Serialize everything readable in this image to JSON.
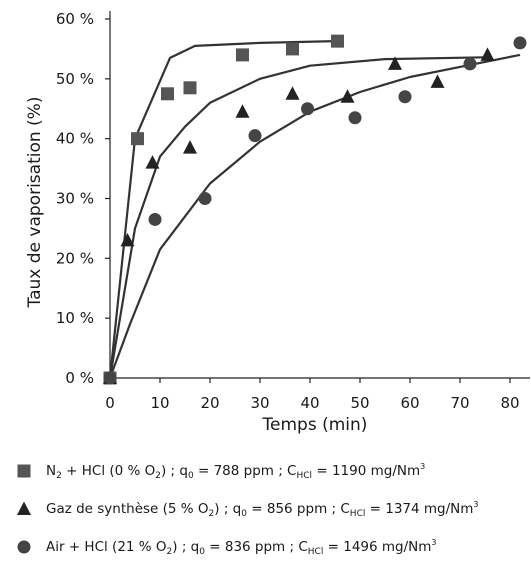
{
  "chart_data": {
    "type": "scatter",
    "title": "",
    "xlabel": "Temps (min)",
    "ylabel": "Taux de vaporisation (%)",
    "xlim": [
      0,
      82
    ],
    "ylim": [
      0,
      60
    ],
    "x_ticks": [
      "0",
      "10",
      "20",
      "30",
      "40",
      "50",
      "60",
      "70",
      "80"
    ],
    "x_tick_values": [
      0,
      10,
      20,
      30,
      40,
      50,
      60,
      70,
      80
    ],
    "y_ticks": [
      "0 %",
      "10 %",
      "20 %",
      "30 %",
      "40 %",
      "50 %",
      "60 %"
    ],
    "y_tick_values": [
      0,
      10,
      20,
      30,
      40,
      50,
      60
    ],
    "grid": false,
    "legend_position": "bottom",
    "series": [
      {
        "marker": "square",
        "color": "#555555",
        "legend": {
          "pre": "N",
          "sub1": "2",
          "mid1": " + HCl (0 % O",
          "sub2": "2",
          "mid2": ") ; q",
          "sub3": "0",
          "mid3": " = 788 ppm ; C",
          "sub4": "HCl",
          "mid4": " = 1190 mg/Nm",
          "sup": "3"
        },
        "points": [
          [
            0,
            0
          ],
          [
            5.5,
            40
          ],
          [
            11.5,
            47.5
          ],
          [
            16,
            48.5
          ],
          [
            26.5,
            54
          ],
          [
            36.5,
            55
          ],
          [
            45.5,
            56.3
          ]
        ],
        "fit": [
          [
            0,
            0
          ],
          [
            5,
            40
          ],
          [
            12,
            53.5
          ],
          [
            17,
            55.5
          ],
          [
            30,
            56
          ],
          [
            45,
            56.3
          ]
        ]
      },
      {
        "marker": "triangle",
        "color": "#222222",
        "legend": {
          "pre": "Gaz de synthèse (5 % O",
          "sub1": "2",
          "mid1": ") ; q",
          "sub2": "0",
          "mid2": " = 856 ppm ; C",
          "sub3": "HCl",
          "mid3": " = 1374 mg/Nm",
          "sub4": "",
          "mid4": "",
          "sup": "3"
        },
        "points": [
          [
            0,
            0
          ],
          [
            3.5,
            23
          ],
          [
            8.5,
            36
          ],
          [
            16,
            38.5
          ],
          [
            26.5,
            44.5
          ],
          [
            36.5,
            47.5
          ],
          [
            47.5,
            47
          ],
          [
            57,
            52.5
          ],
          [
            65.5,
            49.5
          ],
          [
            75.5,
            54
          ]
        ],
        "fit": [
          [
            0,
            0
          ],
          [
            5,
            25
          ],
          [
            10,
            37
          ],
          [
            15,
            42
          ],
          [
            20,
            46
          ],
          [
            30,
            50
          ],
          [
            40,
            52.2
          ],
          [
            55,
            53.3
          ],
          [
            75,
            53.6
          ]
        ]
      },
      {
        "marker": "circle",
        "color": "#444444",
        "legend": {
          "pre": "Air + HCl (21 % O",
          "sub1": "2",
          "mid1": ") ; q",
          "sub2": "0",
          "mid2": " = 836 ppm ; C",
          "sub3": "HCl",
          "mid3": " = 1496 mg/Nm",
          "sub4": "",
          "mid4": "",
          "sup": "3"
        },
        "points": [
          [
            0,
            0
          ],
          [
            9,
            26.5
          ],
          [
            19,
            30
          ],
          [
            29,
            40.5
          ],
          [
            39.5,
            45
          ],
          [
            49,
            43.5
          ],
          [
            59,
            47
          ],
          [
            72,
            52.5
          ],
          [
            82,
            56
          ]
        ],
        "fit": [
          [
            0,
            0
          ],
          [
            4,
            9
          ],
          [
            10,
            21.5
          ],
          [
            20,
            32.5
          ],
          [
            30,
            39.5
          ],
          [
            40,
            44.5
          ],
          [
            50,
            47.8
          ],
          [
            60,
            50.3
          ],
          [
            70,
            52
          ],
          [
            82,
            54
          ]
        ]
      }
    ]
  }
}
